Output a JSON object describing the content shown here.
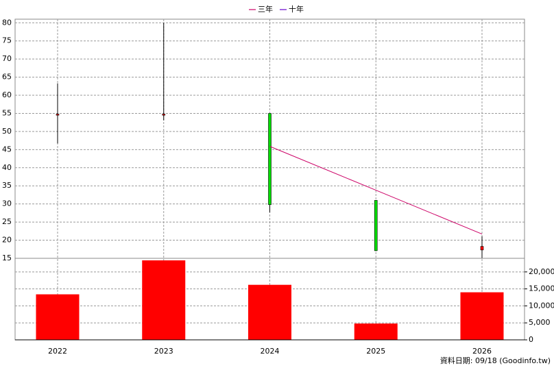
{
  "chart_data": [
    {
      "type": "candlestick",
      "categories": [
        "2022",
        "2023",
        "2024",
        "2025",
        "2026"
      ],
      "open": [
        54.5,
        54.5,
        55,
        31,
        17.3
      ],
      "high": [
        63.3,
        80,
        55,
        31,
        21.1
      ],
      "low": [
        46.7,
        53.1,
        27.7,
        17,
        15
      ],
      "close": [
        54.8,
        54.8,
        29.8,
        17.1,
        18.3
      ],
      "up_color": "#ff0000",
      "down_color": "#00dd00",
      "series": [
        {
          "name": "三年",
          "color": "#cc0066",
          "values": [
            null,
            null,
            45.9,
            33.8,
            21.7
          ]
        },
        {
          "name": "十年",
          "color": "#6600cc",
          "values": [
            null,
            null,
            null,
            null,
            null
          ]
        }
      ],
      "ylim": [
        15,
        81
      ],
      "yticks": [
        15,
        20,
        25,
        30,
        35,
        40,
        45,
        50,
        55,
        60,
        65,
        70,
        75,
        80
      ],
      "grid": true
    },
    {
      "type": "bar",
      "values": [
        13400,
        23400,
        16200,
        4800,
        14000
      ],
      "color": "#ff0000",
      "ylim": [
        0,
        24000
      ],
      "yticks": [
        0,
        {
          "value": 5000,
          "label": "5,000"
        },
        {
          "value": 10000,
          "label": "10,000"
        },
        {
          "value": 15000,
          "label": "15,000"
        },
        {
          "value": 20000,
          "label": "20,000"
        }
      ],
      "grid": true
    }
  ],
  "footer": "資料日期: 09/18  (Goodinfo.tw)"
}
